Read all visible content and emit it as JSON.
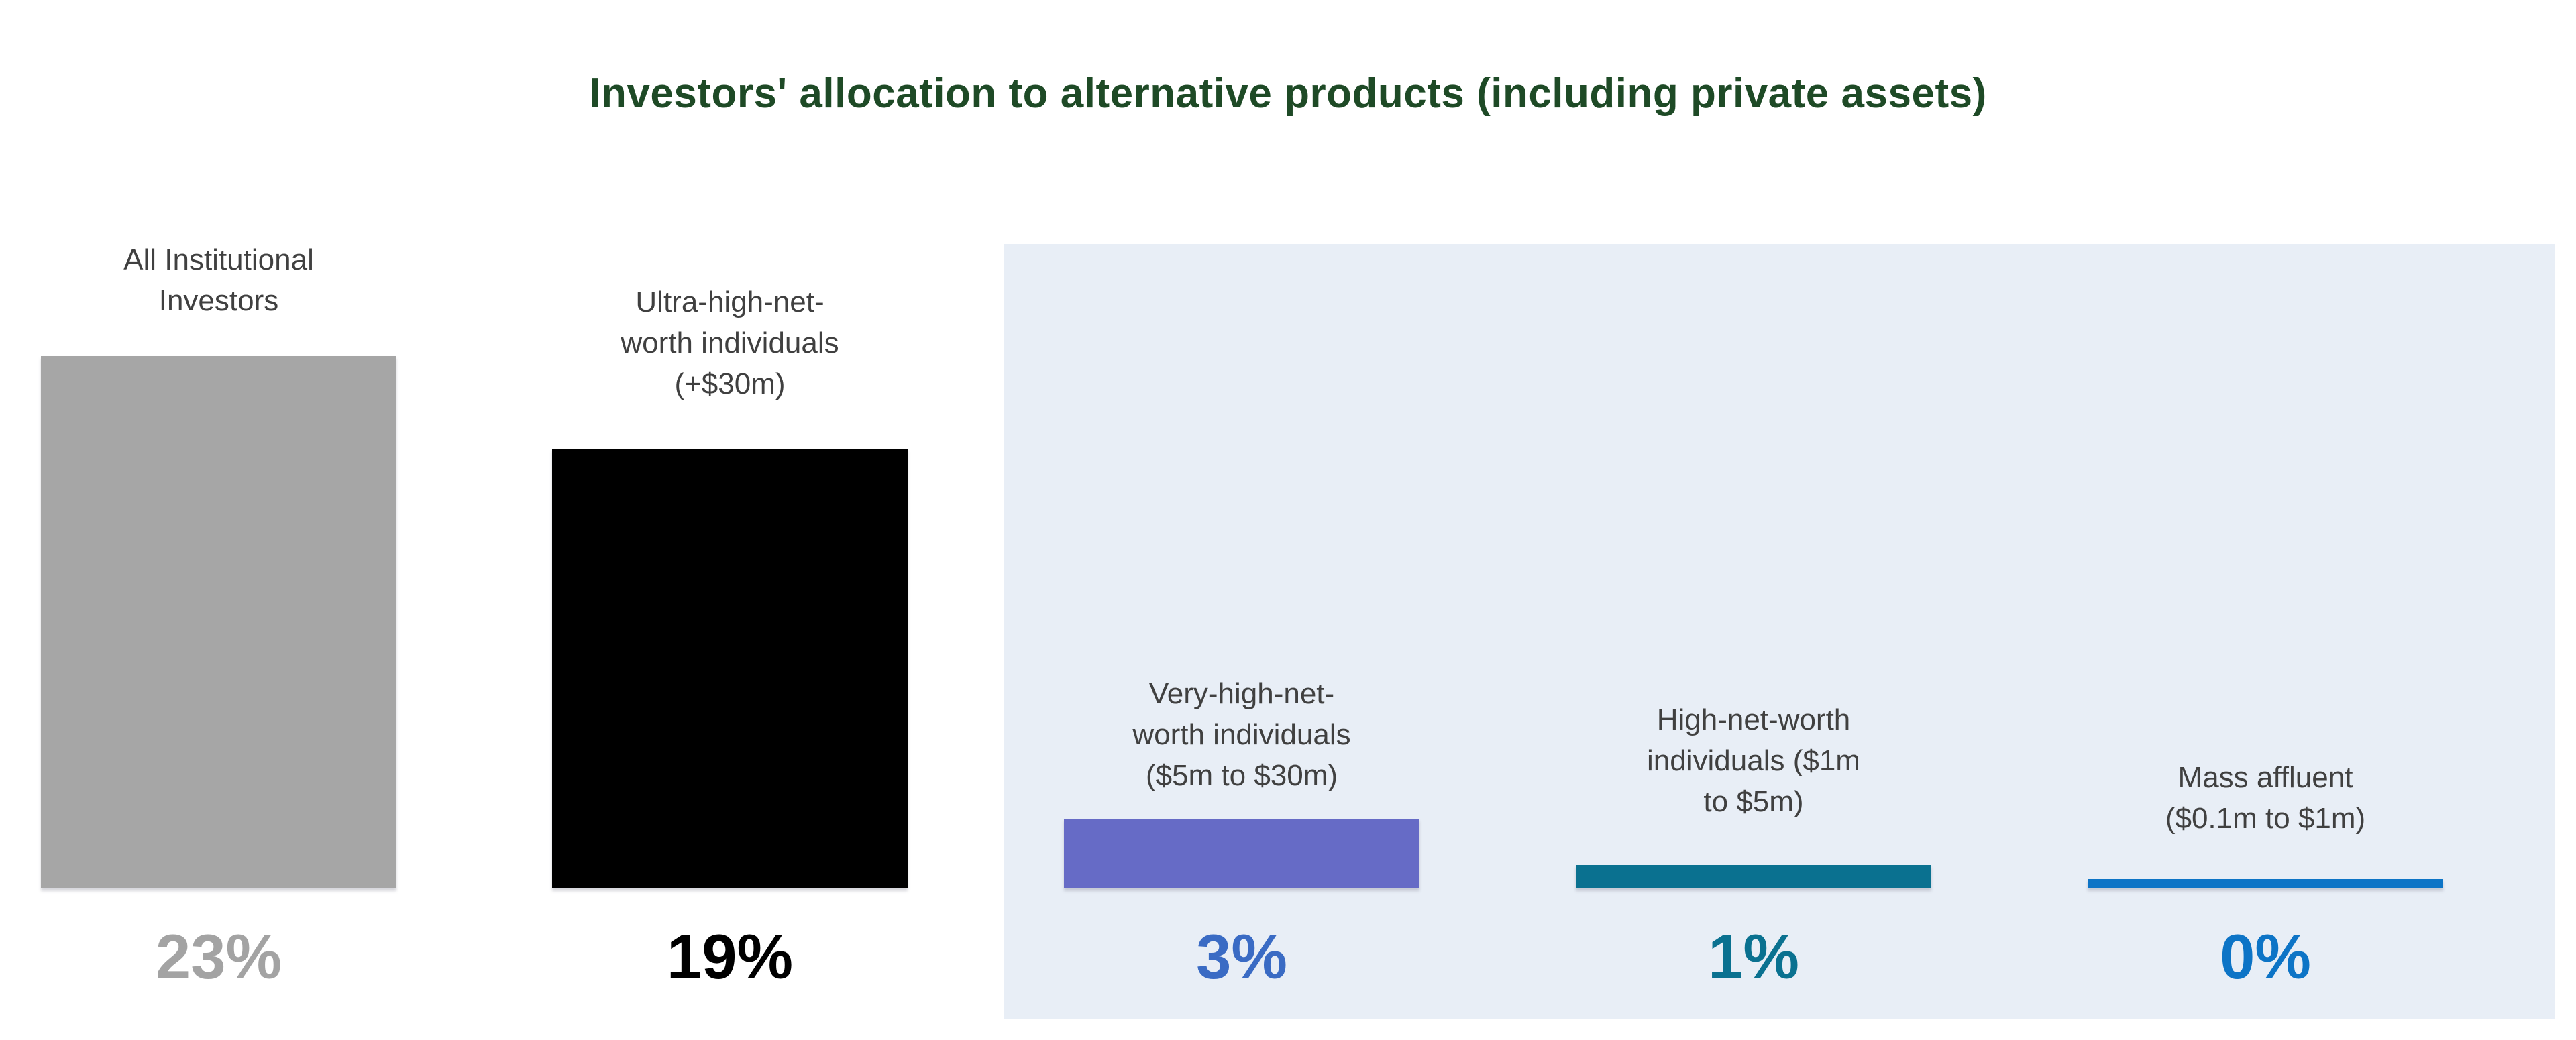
{
  "title": "Investors' allocation to alternative products (including private assets)",
  "title_color": "#1e4a26",
  "panel_color": "#e8eef6",
  "background_color": "#ffffff",
  "chart_data": {
    "type": "bar",
    "title": "Investors' allocation to alternative products (including private assets)",
    "unit": "%",
    "ylim": [
      0,
      25
    ],
    "grid": false,
    "legend": "none",
    "categories": [
      "All Institutional\nInvestors",
      "Ultra-high-net-\nworth individuals\n(+$30m)",
      "Very-high-net-\nworth individuals\n($5m to $30m)",
      "High-net-worth\nindividuals ($1m\nto $5m)",
      "Mass affluent\n($0.1m to $1m)"
    ],
    "values": [
      23,
      19,
      3,
      1,
      0
    ],
    "value_labels": [
      "23%",
      "19%",
      "3%",
      "1%",
      "0%"
    ],
    "bar_colors": [
      "#a6a6a6",
      "#000000",
      "#666bc6",
      "#0a7190",
      "#0d74c6"
    ],
    "value_label_colors": [
      "#a3a3a3",
      "#000000",
      "#3a6bc4",
      "#0a7190",
      "#0d74c6"
    ],
    "category_label_color": "#404040",
    "highlight_panel_categories": [
      "Very-high-net-worth individuals ($5m to $30m)",
      "High-net-worth individuals ($1m to $5m)",
      "Mass affluent ($0.1m to $1m)"
    ]
  }
}
